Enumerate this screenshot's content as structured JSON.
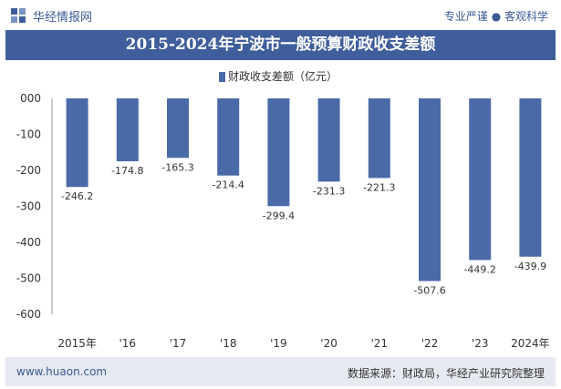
{
  "header": {
    "brand": "华经情报网",
    "slogan": "专业严谨 ● 客观科学"
  },
  "title": "2015-2024年宁波市一般预算财政收支差额",
  "legend": {
    "label": "财政收支差额（亿元）",
    "color": "#4a6aa7"
  },
  "chart_data": {
    "type": "bar",
    "title": "2015-2024年宁波市一般预算财政收支差额",
    "xlabel": "",
    "ylabel": "",
    "categories": [
      "2015年",
      "'16",
      "'17",
      "'18",
      "'19",
      "'20",
      "'21",
      "'22",
      "'23",
      "2024年"
    ],
    "series": [
      {
        "name": "财政收支差额（亿元）",
        "values": [
          -246.2,
          -174.8,
          -165.3,
          -214.4,
          -299.4,
          -231.3,
          -221.3,
          -507.6,
          -449.2,
          -439.9
        ],
        "labels": [
          "-246.2",
          "-174.8",
          "-165.3",
          "-214.4",
          "-299.4",
          "-231.3",
          "-221.3",
          "-507.6",
          "-449.2",
          "-439.9"
        ]
      }
    ],
    "ylim": [
      -600,
      0
    ],
    "yticks": [
      0,
      -100,
      -200,
      -300,
      -400,
      -500,
      -600
    ],
    "ytick_labels": [
      "000",
      "-100",
      "-200",
      "-300",
      "-400",
      "-500",
      "-600"
    ],
    "grid": false,
    "legend_position": "top",
    "bar_color": "#4a6aa7"
  },
  "footer": {
    "url": "www.huaon.com",
    "source": "数据来源：财政局，华经产业研究院整理"
  }
}
